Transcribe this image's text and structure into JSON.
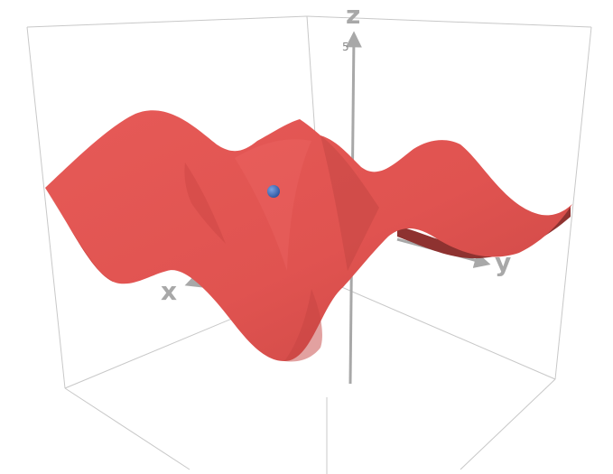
{
  "scene": {
    "axes": {
      "x_label": "x",
      "y_label": "y",
      "z_label": "z",
      "z_tick": "5"
    },
    "surface_color": "#e05350",
    "surface_shadow_color": "#9a3532",
    "marker_color": "#3466b5",
    "box_edge_color": "#c8c8c8",
    "axis_color": "#a8a8a8"
  }
}
